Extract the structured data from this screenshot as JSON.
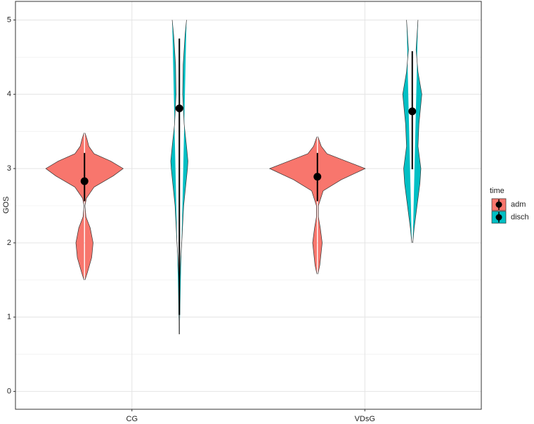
{
  "chart_data": {
    "type": "violin",
    "y_label": "GOS",
    "categories": [
      "CG",
      "VDsG"
    ],
    "ylim": [
      -0.24,
      5.25
    ],
    "yticks": [
      0,
      1,
      2,
      3,
      4,
      5
    ],
    "yminor": [
      0.5,
      1.5,
      2.5,
      3.5,
      4.5
    ],
    "grid": true,
    "legend_title": "time",
    "legend": "right",
    "series": [
      {
        "name": "adm",
        "color": "#F8766D",
        "values": [
          2.83,
          2.89
        ],
        "lower": [
          2.56,
          2.56
        ],
        "upper": [
          3.21,
          3.21
        ],
        "density": [
          {
            "y": [
              1.5,
              1.6,
              1.8,
              2.0,
              2.2,
              2.35,
              2.5,
              2.6,
              2.75,
              2.9,
              3.0,
              3.1,
              3.2,
              3.3,
              3.4,
              3.48
            ],
            "w": [
              0.01,
              0.06,
              0.15,
              0.18,
              0.12,
              0.03,
              0.01,
              0.04,
              0.2,
              0.6,
              0.81,
              0.55,
              0.2,
              0.09,
              0.05,
              0.01
            ]
          },
          {
            "y": [
              1.58,
              1.7,
              2.0,
              2.2,
              2.35,
              2.5,
              2.7,
              2.85,
              3.0,
              3.1,
              3.2,
              3.3,
              3.43
            ],
            "w": [
              0.01,
              0.05,
              0.1,
              0.06,
              0.02,
              0.02,
              0.12,
              0.5,
              1.0,
              0.6,
              0.2,
              0.08,
              0.01
            ]
          }
        ]
      },
      {
        "name": "disch",
        "color": "#00BFC4",
        "values": [
          3.81,
          3.77
        ],
        "lower": [
          1.03,
          2.99
        ],
        "upper": [
          4.75,
          4.58
        ],
        "density": [
          {
            "y": [
              0.77,
              1.5,
              1.8,
              2.0,
              2.5,
              3.0,
              3.1,
              3.3,
              3.6,
              4.0,
              4.4,
              4.8,
              5.0
            ],
            "w": [
              0.005,
              0.01,
              0.03,
              0.05,
              0.09,
              0.17,
              0.18,
              0.15,
              0.1,
              0.07,
              0.08,
              0.12,
              0.15
            ]
          },
          {
            "y": [
              2.0,
              2.2,
              2.5,
              2.8,
              3.0,
              3.3,
              3.6,
              4.0,
              4.3,
              4.6,
              5.0
            ],
            "w": [
              0.01,
              0.04,
              0.1,
              0.16,
              0.18,
              0.12,
              0.14,
              0.2,
              0.12,
              0.08,
              0.12
            ]
          }
        ]
      }
    ]
  }
}
